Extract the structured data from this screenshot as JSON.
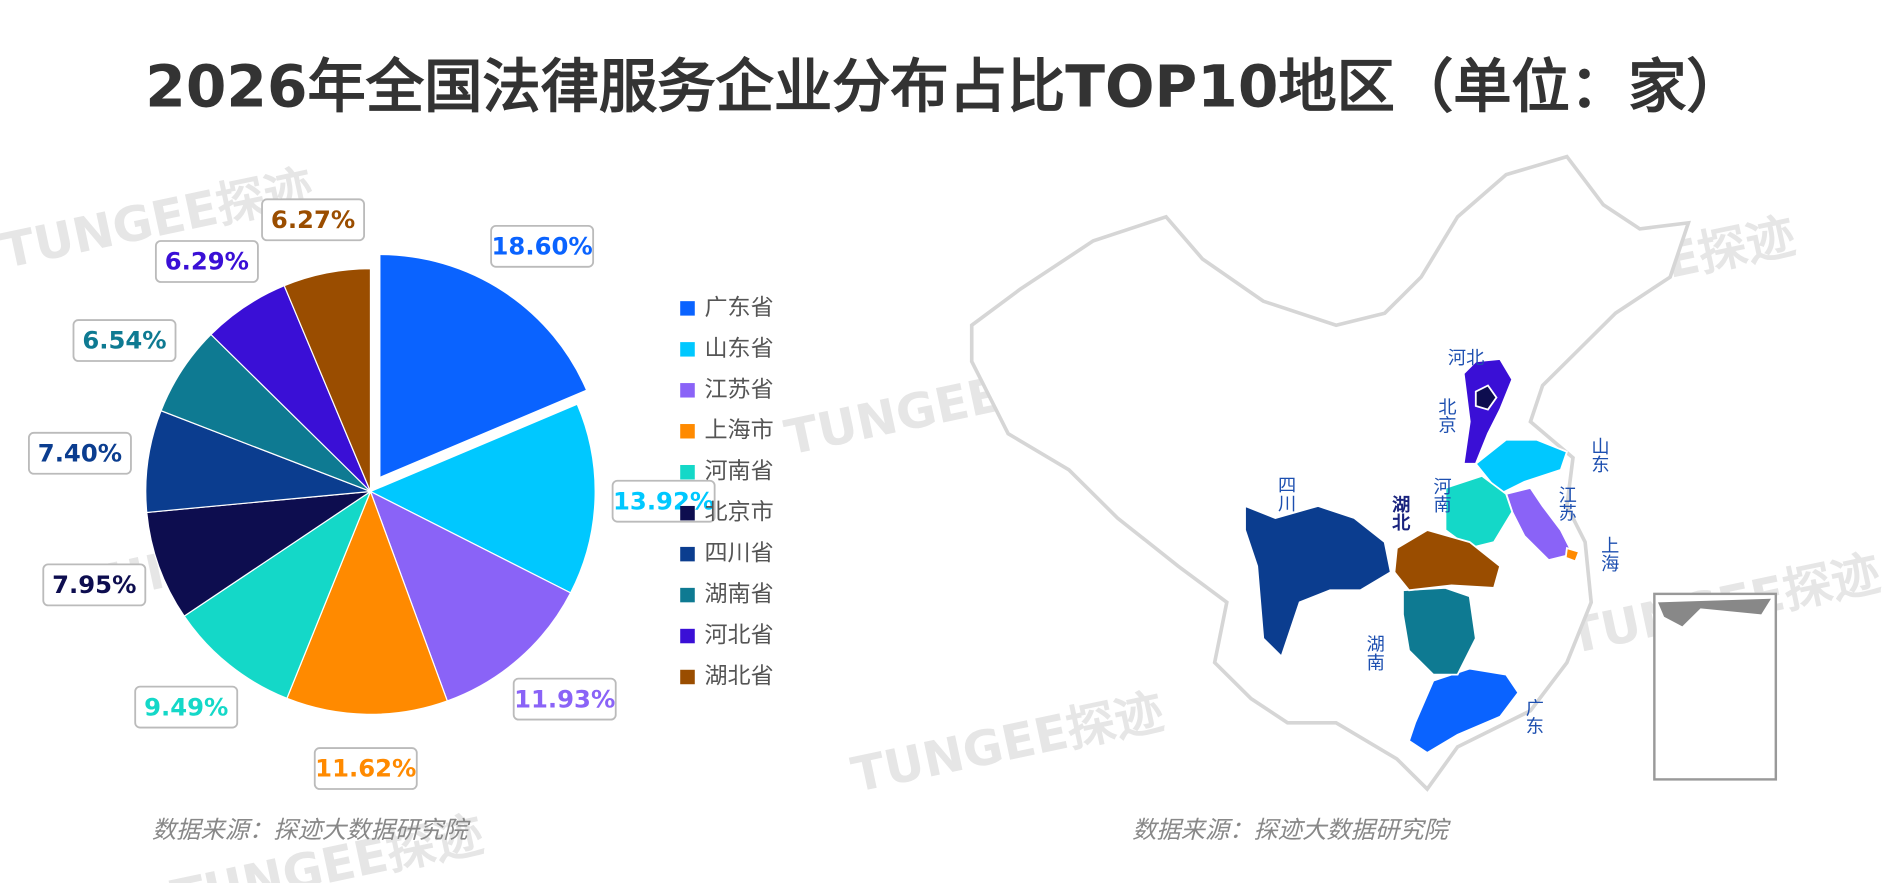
{
  "chart_data": {
    "type": "pie",
    "title": "2026年全国法律服务企业分布占比TOP10地区（单位：家）",
    "categories": [
      "广东省",
      "山东省",
      "江苏省",
      "上海市",
      "河南省",
      "北京市",
      "四川省",
      "湖南省",
      "河北省",
      "湖北省"
    ],
    "values": [
      18.6,
      13.92,
      11.93,
      11.62,
      9.49,
      7.95,
      7.4,
      6.54,
      6.29,
      6.27
    ],
    "value_labels": [
      "18.60%",
      "13.92%",
      "11.93%",
      "11.62%",
      "9.49%",
      "7.95%",
      "7.40%",
      "6.54%",
      "6.29%",
      "6.27%"
    ],
    "colors": [
      "#0a63ff",
      "#00c8ff",
      "#8a63f7",
      "#ff8a00",
      "#14d8c8",
      "#0d0d4f",
      "#0b3d8f",
      "#0e7a92",
      "#3a0fd6",
      "#9a4d00"
    ],
    "legend": "right"
  },
  "map": {
    "labels": [
      "广东",
      "山东",
      "江苏",
      "上海",
      "河南",
      "北京",
      "四川",
      "湖南",
      "河北",
      "湖北"
    ]
  },
  "source": "数据来源：探迹大数据研究院",
  "watermark": "TUNGEE探迹"
}
